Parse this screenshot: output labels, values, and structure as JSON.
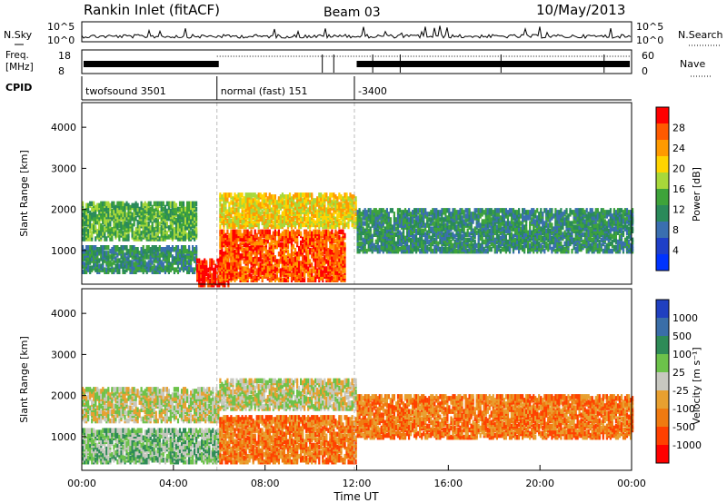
{
  "header": {
    "station": "Rankin Inlet (fitACF)",
    "beam": "Beam 03",
    "date": "10/May/2013"
  },
  "summary": {
    "nsky_label": "N.Sky",
    "nsearch_label": "N.Search",
    "freq_label_line1": "Freq.",
    "freq_label_line2": "[MHz]",
    "nave_label": "Nave",
    "cpid_label": "CPID",
    "left_ticks_top": [
      "10^5",
      "10^0"
    ],
    "right_ticks_top": [
      "10^5",
      "10^0"
    ],
    "left_ticks_freq": [
      "18",
      "8"
    ],
    "right_ticks_nave": [
      "60",
      "0"
    ],
    "cpid_segments": [
      {
        "start_hour": 0.0,
        "end_hour": 5.9,
        "label": "twofsound 3501"
      },
      {
        "start_hour": 5.9,
        "end_hour": 11.9,
        "label": "normal (fast) 151"
      },
      {
        "start_hour": 11.9,
        "end_hour": 24.0,
        "label": "-3400"
      }
    ]
  },
  "colorbars": {
    "power": {
      "title": "Power [dB]",
      "ticks": [
        "28",
        "24",
        "20",
        "16",
        "12",
        "8",
        "4"
      ],
      "colors": [
        "#ff0000",
        "#ff5a00",
        "#ff9a00",
        "#ffd400",
        "#a8d83a",
        "#3ea33a",
        "#2a8a5a",
        "#3a6fb0",
        "#1f3fc8",
        "#0033ff"
      ]
    },
    "velocity": {
      "title": "Velocity [m s⁻¹]",
      "ticks": [
        "1000",
        "500",
        "100",
        "25",
        "-25",
        "-100",
        "-500",
        "-1000"
      ],
      "colors": [
        "#2040c0",
        "#3a6ea8",
        "#2e8b57",
        "#6cc24a",
        "#c8c8c0",
        "#e8a030",
        "#f07a10",
        "#ff4000",
        "#ff0000"
      ]
    }
  },
  "chart_data": [
    {
      "type": "heatmap",
      "name": "power",
      "xlabel": "",
      "ylabel": "Slant Range [km]",
      "xlim_hours": [
        0,
        24
      ],
      "ylim_km": [
        180,
        4600
      ],
      "yticks": [
        "1000",
        "2000",
        "3000",
        "4000"
      ],
      "grid": false,
      "data_regions": [
        {
          "t0": 0.0,
          "t1": 5.0,
          "r0": 1300,
          "r1": 2200,
          "level_db": 14
        },
        {
          "t0": 0.0,
          "t1": 5.0,
          "r0": 500,
          "r1": 1100,
          "level_db": 10
        },
        {
          "t0": 5.0,
          "t1": 6.4,
          "r0": 180,
          "r1": 800,
          "level_db": 28
        },
        {
          "t0": 6.0,
          "t1": 11.5,
          "r0": 300,
          "r1": 1500,
          "level_db": 24
        },
        {
          "t0": 6.0,
          "t1": 12.0,
          "r0": 1600,
          "r1": 2400,
          "level_db": 18
        },
        {
          "t0": 12.0,
          "t1": 24.0,
          "r0": 1000,
          "r1": 2000,
          "level_db": 8
        }
      ]
    },
    {
      "type": "heatmap",
      "name": "velocity",
      "xlabel": "Time UT",
      "ylabel": "Slant Range [km]",
      "xlim_hours": [
        0,
        24
      ],
      "ylim_km": [
        180,
        4600
      ],
      "xticks": [
        "00:00",
        "04:00",
        "08:00",
        "12:00",
        "16:00",
        "20:00",
        "00:00"
      ],
      "yticks": [
        "1000",
        "2000",
        "3000",
        "4000"
      ],
      "grid": false,
      "data_regions": [
        {
          "t0": 0.0,
          "t1": 6.0,
          "r0": 1400,
          "r1": 2200,
          "level_ms": 0
        },
        {
          "t0": 0.0,
          "t1": 6.0,
          "r0": 400,
          "r1": 1200,
          "level_ms": 150
        },
        {
          "t0": 6.0,
          "t1": 12.0,
          "r0": 1700,
          "r1": 2400,
          "level_ms": 0
        },
        {
          "t0": 6.0,
          "t1": 12.0,
          "r0": 400,
          "r1": 1500,
          "level_ms": -150
        },
        {
          "t0": 12.0,
          "t1": 24.0,
          "r0": 1000,
          "r1": 2000,
          "level_ms": -200
        }
      ]
    }
  ]
}
